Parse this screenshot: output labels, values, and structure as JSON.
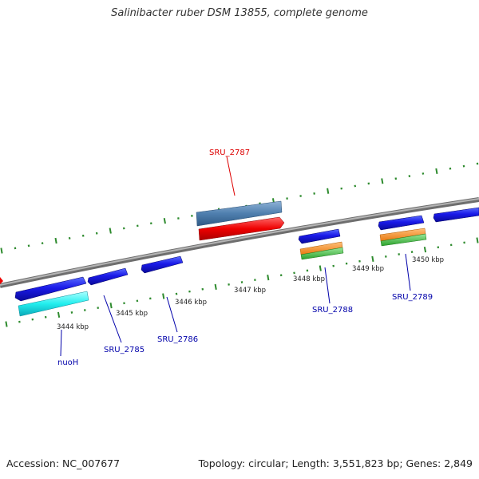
{
  "title": "Salinibacter ruber DSM 13855, complete genome",
  "footer": {
    "accession": "Accession: NC_007677",
    "summary": "Topology: circular; Length: 3,551,823 bp; Genes: 2,849"
  },
  "colors": {
    "backbone": "#888888",
    "ticks": "#2e8b2e",
    "forward_gene": "#0000dd",
    "reverse_label": "#dd0000",
    "forward_label": "#0000aa",
    "kbp_label": "#222222"
  },
  "scale_labels": [
    "3444 kbp",
    "3445 kbp",
    "3446 kbp",
    "3447 kbp",
    "3448 kbp",
    "3449 kbp",
    "3450 kbp"
  ],
  "gene_labels": {
    "sru_2787": "SRU_2787",
    "nuoh": "nuoH",
    "sru_2785": "SRU_2785",
    "sru_2786": "SRU_2786",
    "sru_2788": "SRU_2788",
    "sru_2789": "SRU_2789"
  }
}
